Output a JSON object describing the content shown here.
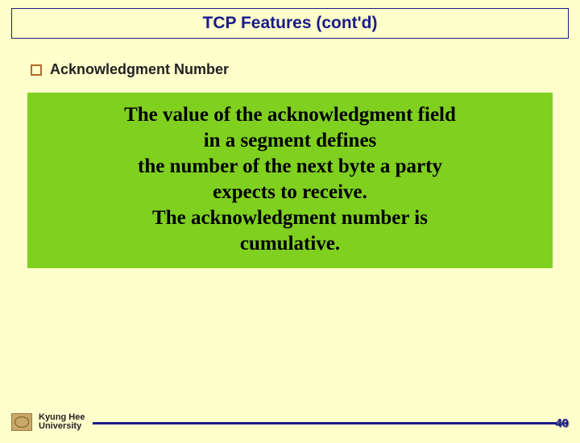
{
  "title": "TCP Features (cont'd)",
  "bullet": {
    "label": "Acknowledgment Number"
  },
  "box": {
    "background_color": "#80d020",
    "text_color": "#000000",
    "font_family": "Times New Roman",
    "font_weight": "bold",
    "font_size_pt": 19,
    "lines": [
      "The value of the acknowledgment field",
      "in a segment defines",
      "the number of the next byte a party",
      "expects to receive.",
      "The acknowledgment number is",
      "cumulative."
    ]
  },
  "footer": {
    "university_line1": "Kyung Hee",
    "university_line2": "University",
    "page_number": "40"
  },
  "colors": {
    "page_background": "#ffffcc",
    "title_color": "#1a1a8a",
    "rule_color": "#1a1a8a",
    "bullet_border": "#b06a2a"
  }
}
